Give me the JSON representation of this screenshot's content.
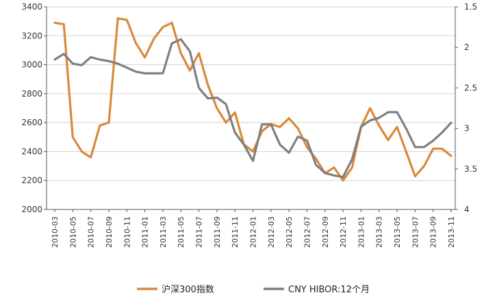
{
  "chart_data": {
    "type": "line",
    "title": "",
    "xlabel": "",
    "ylabel": "",
    "y_left": {
      "min": 2000,
      "max": 3400,
      "ticks": [
        "2000",
        "2200",
        "2400",
        "2600",
        "2800",
        "3000",
        "3200",
        "3400"
      ]
    },
    "y_right": {
      "min": 1.5,
      "max": 4,
      "inverted": true,
      "ticks": [
        "1.5",
        "2",
        "2.5",
        "3",
        "3.5",
        "4"
      ]
    },
    "x": [
      "2010-03",
      "2010-04",
      "2010-05",
      "2010-06",
      "2010-07",
      "2010-08",
      "2010-09",
      "2010-10",
      "2010-11",
      "2010-12",
      "2011-01",
      "2011-02",
      "2011-03",
      "2011-04",
      "2011-05",
      "2011-06",
      "2011-07",
      "2011-08",
      "2011-09",
      "2011-10",
      "2011-11",
      "2011-12",
      "2012-01",
      "2012-02",
      "2012-03",
      "2012-04",
      "2012-05",
      "2012-06",
      "2012-07",
      "2012-08",
      "2012-09",
      "2012-10",
      "2012-11",
      "2012-12",
      "2013-01",
      "2013-02",
      "2013-03",
      "2013-04",
      "2013-05",
      "2013-06",
      "2013-07",
      "2013-08",
      "2013-09",
      "2013-10",
      "2013-11"
    ],
    "x_tick_labels": [
      "2010-03",
      "2010-05",
      "2010-07",
      "2010-09",
      "2010-11",
      "2011-01",
      "2011-03",
      "2011-05",
      "2011-07",
      "2011-09",
      "2011-11",
      "2012-01",
      "2012-03",
      "2012-05",
      "2012-07",
      "2012-09",
      "2012-11",
      "2013-01",
      "2013-03",
      "2013-05",
      "2013-07",
      "2013-09",
      "2013-11"
    ],
    "grid": true,
    "legend_position": "bottom",
    "series": [
      {
        "name": "沪深300指数",
        "axis": "left",
        "color": "#D9893A",
        "values": [
          3290,
          3280,
          2500,
          2400,
          2360,
          2580,
          2600,
          3320,
          3310,
          3150,
          3050,
          3180,
          3260,
          3290,
          3080,
          2960,
          3080,
          2860,
          2700,
          2600,
          2670,
          2450,
          2400,
          2540,
          2590,
          2570,
          2630,
          2560,
          2430,
          2350,
          2250,
          2290,
          2200,
          2290,
          2570,
          2700,
          2580,
          2480,
          2570,
          2400,
          2230,
          2300,
          2420,
          2420,
          2370
        ]
      },
      {
        "name": "CNY HIBOR:12个月",
        "axis": "right",
        "color": "#7F7F7F",
        "values": [
          2.15,
          2.08,
          2.2,
          2.22,
          2.12,
          2.15,
          2.17,
          2.2,
          2.25,
          2.3,
          2.32,
          2.32,
          2.32,
          1.95,
          1.9,
          2.05,
          2.5,
          2.63,
          2.62,
          2.7,
          3.05,
          3.2,
          3.4,
          2.95,
          2.95,
          3.2,
          3.3,
          3.1,
          3.15,
          3.45,
          3.55,
          3.58,
          3.6,
          3.38,
          2.98,
          2.9,
          2.87,
          2.8,
          2.8,
          3.0,
          3.23,
          3.23,
          3.15,
          3.05,
          2.93
        ]
      }
    ]
  }
}
